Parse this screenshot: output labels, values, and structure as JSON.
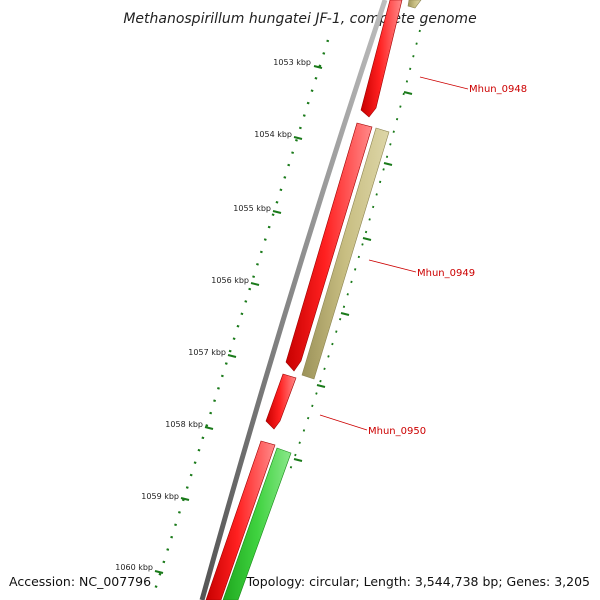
{
  "title": "Methanospirillum hungatei JF-1, complete genome",
  "ticks": [
    {
      "label": "1053 kbp"
    },
    {
      "label": "1054 kbp"
    },
    {
      "label": "1055 kbp"
    },
    {
      "label": "1056 kbp"
    },
    {
      "label": "1057 kbp"
    },
    {
      "label": "1058 kbp"
    },
    {
      "label": "1059 kbp"
    },
    {
      "label": "1060 kbp"
    }
  ],
  "genes": [
    {
      "name": "Mhun_0948"
    },
    {
      "name": "Mhun_0949"
    },
    {
      "name": "Mhun_0950"
    }
  ],
  "footer": {
    "accession": "Accession: NC_007796",
    "summary": "Topology: circular; Length: 3,544,738 bp; Genes: 3,205"
  },
  "colors": {
    "backbone": "#7a7a7a",
    "forward_gene": "#ff1a1a",
    "reverse_gene": "#c2b877",
    "green_gene": "#33cc33",
    "tick": "#1a7a1a",
    "label": "#cc0000"
  }
}
